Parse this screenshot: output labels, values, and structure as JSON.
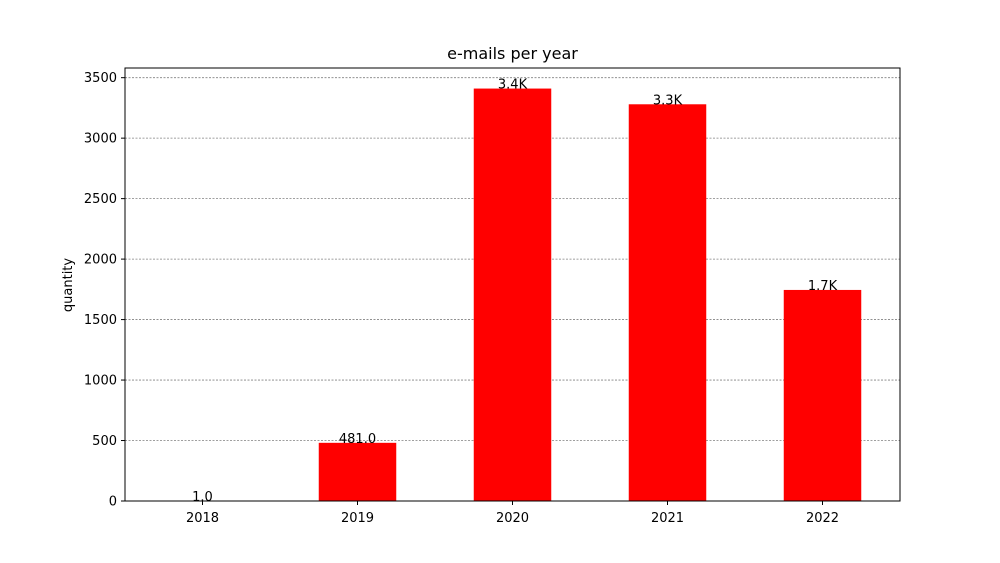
{
  "chart_data": {
    "type": "bar",
    "title": "e-mails per year",
    "xlabel": "",
    "ylabel": "quantity",
    "categories": [
      "2018",
      "2019",
      "2020",
      "2021",
      "2022"
    ],
    "values": [
      1,
      481,
      3410,
      3280,
      1745
    ],
    "data_labels": [
      "1.0",
      "481.0",
      "3.4K",
      "3.3K",
      "1.7K"
    ],
    "ylim": [
      0,
      3580
    ],
    "yticks": [
      0,
      500,
      1000,
      1500,
      2000,
      2500,
      3000,
      3500
    ],
    "grid": true,
    "bar_color": "#ff0000"
  }
}
